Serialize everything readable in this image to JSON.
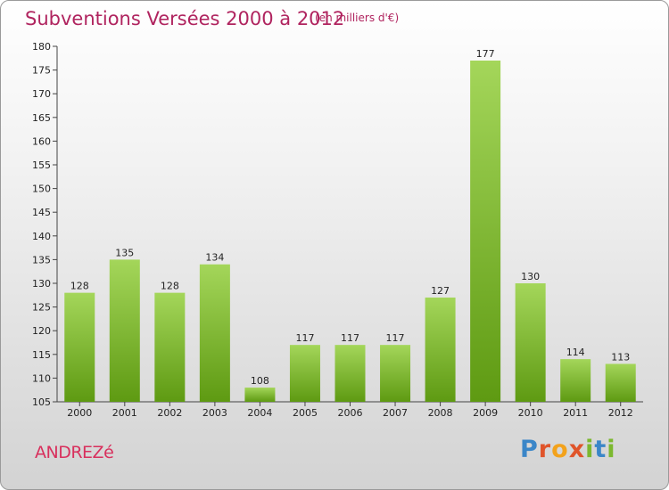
{
  "title": "Subventions Versées 2000 à 2012",
  "subtitle": "(en milliers d'€)",
  "commune": "ANDREZé",
  "logo": {
    "text": "Proxiti",
    "letter_colors": [
      "#3a86c8",
      "#e0542a",
      "#f3a21b",
      "#e0542a",
      "#7cb82f",
      "#3a86c8",
      "#7cb82f"
    ]
  },
  "colors": {
    "title": "#b0245f",
    "bar_light": "#a4d65a",
    "bar_dark": "#5e9a12"
  },
  "chart_data": {
    "type": "bar",
    "title": "Subventions Versées 2000 à 2012",
    "subtitle": "(en milliers d'€)",
    "xlabel": "",
    "ylabel": "",
    "categories": [
      "2000",
      "2001",
      "2002",
      "2003",
      "2004",
      "2005",
      "2006",
      "2007",
      "2008",
      "2009",
      "2010",
      "2011",
      "2012"
    ],
    "values": [
      128,
      135,
      128,
      134,
      108,
      117,
      117,
      117,
      127,
      177,
      130,
      114,
      113
    ],
    "ylim": [
      105,
      180
    ],
    "yticks": [
      105,
      110,
      115,
      120,
      125,
      130,
      135,
      140,
      145,
      150,
      155,
      160,
      165,
      170,
      175,
      180
    ],
    "grid": false,
    "legend": "none",
    "data_labels": true
  }
}
